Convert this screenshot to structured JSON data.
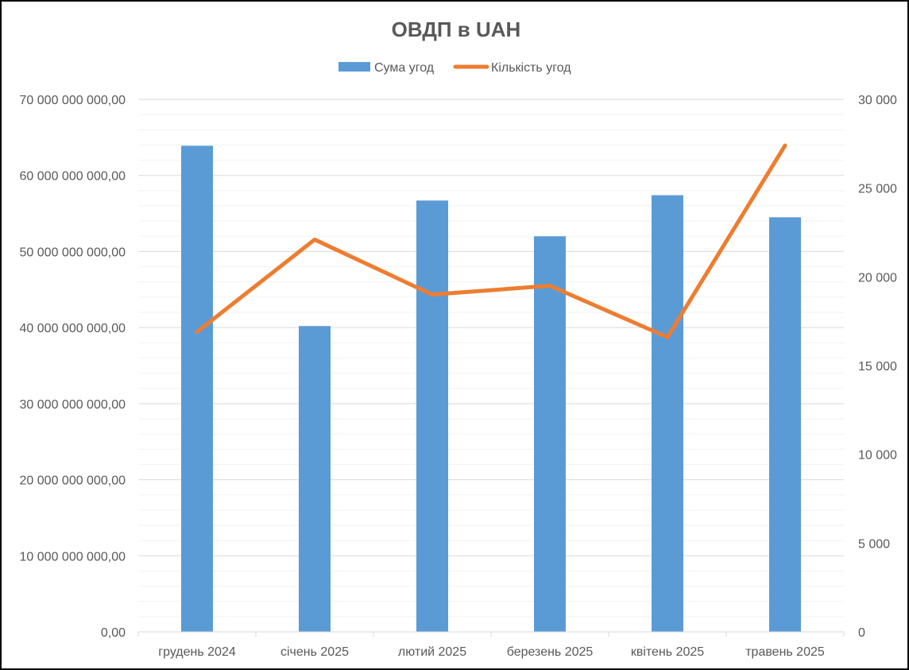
{
  "chart_data": {
    "type": "bar",
    "title": "ОВДП в UAH",
    "categories": [
      "грудень 2024",
      "січень 2025",
      "лютий 2025",
      "березень 2025",
      "квітень 2025",
      "травень 2025"
    ],
    "series": [
      {
        "name": "Сума угод",
        "type": "bar",
        "axis": "left",
        "color": "#5B9BD5",
        "values": [
          63900000000,
          40200000000,
          56700000000,
          52000000000,
          57400000000,
          54500000000
        ]
      },
      {
        "name": "Кількість угод",
        "type": "line",
        "axis": "right",
        "color": "#ED7D31",
        "values": [
          16900,
          22100,
          19000,
          19500,
          16600,
          27400
        ]
      }
    ],
    "y_left": {
      "min": 0,
      "max": 70000000000,
      "step": 10000000000,
      "tick_labels": [
        "0,00",
        "10 000 000 000,00",
        "20 000 000 000,00",
        "30 000 000 000,00",
        "40 000 000 000,00",
        "50 000 000 000,00",
        "60 000 000 000,00",
        "70 000 000 000,00"
      ]
    },
    "y_right": {
      "min": 0,
      "max": 30000,
      "step": 5000,
      "tick_labels": [
        "0",
        "5 000",
        "10 000",
        "15 000",
        "20 000",
        "25 000",
        "30 000"
      ]
    },
    "grid": true,
    "minor_grid": true,
    "legend_position": "top"
  }
}
